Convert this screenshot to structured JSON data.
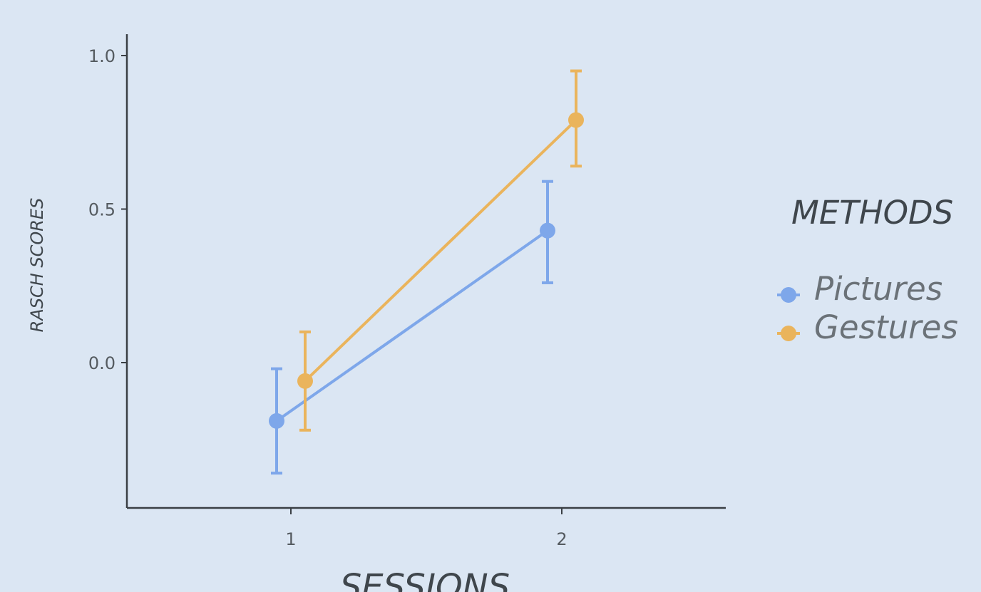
{
  "chart_data": {
    "type": "line",
    "xlabel": "SESSIONS",
    "ylabel": "RASCH SCORES",
    "categories": [
      "1",
      "2"
    ],
    "yticks": [
      "0.0",
      "0.5",
      "1.0"
    ],
    "ylim": [
      -0.46,
      1.08
    ],
    "grid": false,
    "legend": {
      "title": "METHODS",
      "placement": "right"
    },
    "error_bars": true,
    "series": [
      {
        "name": "Pictures",
        "color": "#7ea7ea",
        "values": [
          -0.19,
          0.43
        ],
        "ci_low": [
          -0.36,
          0.26
        ],
        "ci_high": [
          -0.02,
          0.59
        ]
      },
      {
        "name": "Gestures",
        "color": "#eab45c",
        "values": [
          -0.06,
          0.79
        ],
        "ci_low": [
          -0.22,
          0.64
        ],
        "ci_high": [
          0.1,
          0.95
        ]
      }
    ]
  }
}
